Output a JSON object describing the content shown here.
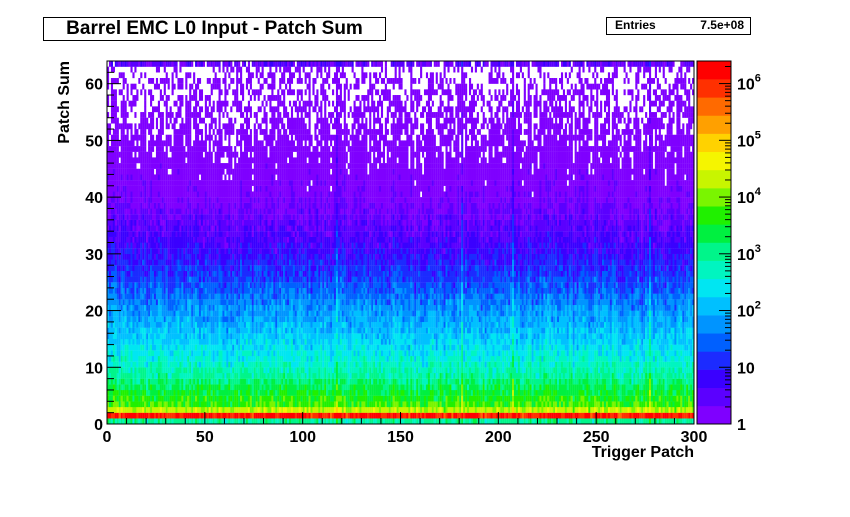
{
  "header": {
    "title": "Barrel EMC L0 Input - Patch Sum"
  },
  "stats": {
    "entries_label": "Entries",
    "entries_value": "7.5e+08"
  },
  "chart_data": {
    "type": "heatmap",
    "title": "Barrel EMC L0 Input - Patch Sum",
    "xlabel": "Trigger Patch",
    "ylabel": "Patch Sum",
    "xlim": [
      0,
      300
    ],
    "ylim": [
      0,
      64
    ],
    "x_ticks": [
      0,
      50,
      100,
      150,
      200,
      250,
      300
    ],
    "y_ticks": [
      0,
      10,
      20,
      30,
      40,
      50,
      60
    ],
    "z_scale": "log",
    "zlim": [
      1,
      2500000
    ],
    "z_ticks": [
      {
        "value": 1,
        "label": "1"
      },
      {
        "value": 10,
        "label": "10"
      },
      {
        "value": 100,
        "label": "10",
        "exp": "2"
      },
      {
        "value": 1000,
        "label": "10",
        "exp": "3"
      },
      {
        "value": 10000,
        "label": "10",
        "exp": "4"
      },
      {
        "value": 100000,
        "label": "10",
        "exp": "5"
      },
      {
        "value": 1000000,
        "label": "10",
        "exp": "6"
      }
    ],
    "row_profile": [
      {
        "y": 0,
        "counts": 1000
      },
      {
        "y": 1,
        "counts": 1500000
      },
      {
        "y": 2,
        "counts": 20000
      },
      {
        "y": 3,
        "counts": 6000
      },
      {
        "y": 5,
        "counts": 3000
      },
      {
        "y": 8,
        "counts": 900
      },
      {
        "y": 12,
        "counts": 300
      },
      {
        "y": 16,
        "counts": 130
      },
      {
        "y": 20,
        "counts": 60
      },
      {
        "y": 25,
        "counts": 20
      },
      {
        "y": 30,
        "counts": 7
      },
      {
        "y": 35,
        "counts": 3
      },
      {
        "y": 40,
        "counts": 1.5
      },
      {
        "y": 50,
        "counts": 0.7
      },
      {
        "y": 60,
        "counts": 0.4
      },
      {
        "y": 62,
        "counts": 0.3
      },
      {
        "y": 63,
        "counts": 3
      }
    ],
    "hot_columns": [
      117,
      181,
      207,
      277
    ],
    "palette": [
      "#7f00ff",
      "#5b00ff",
      "#3a00ff",
      "#1c2bff",
      "#0060ff",
      "#0094ff",
      "#00c0ff",
      "#00e6f2",
      "#00f5c0",
      "#00f58a",
      "#00f040",
      "#20f000",
      "#7af500",
      "#c8f500",
      "#f5f500",
      "#ffd200",
      "#ffa000",
      "#ff6a00",
      "#ff3000",
      "#ff0000"
    ]
  }
}
